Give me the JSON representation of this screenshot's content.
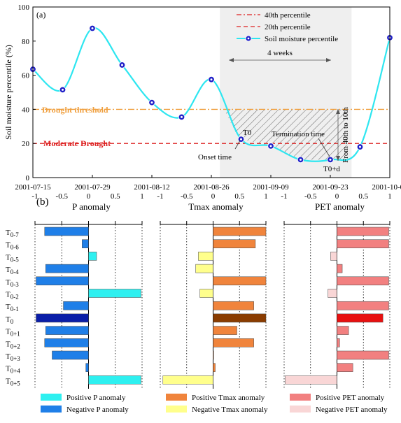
{
  "chart_data": [
    {
      "type": "line",
      "panel_label": "(a)",
      "ylabel": "Soil moisture percentile (%)",
      "ylim": [
        0,
        100
      ],
      "yticks": [
        "0",
        "20",
        "40",
        "60",
        "80",
        "100"
      ],
      "xticks": [
        "2001-07-15",
        "2001-07-29",
        "2001-08-12",
        "2001-08-26",
        "2001-09-09",
        "2001-09-23",
        "2001-10-07"
      ],
      "legend": [
        "40th percentile",
        "20th percentile",
        "Soil moisture percentile"
      ],
      "series": [
        {
          "name": "Soil moisture percentile",
          "x": [
            "2001-07-15",
            "2001-07-22",
            "2001-07-29",
            "2001-08-05",
            "2001-08-12",
            "2001-08-19",
            "2001-08-26",
            "2001-09-02",
            "2001-09-09",
            "2001-09-16",
            "2001-09-23",
            "2001-09-30",
            "2001-10-07"
          ],
          "values": [
            63.5,
            51.5,
            87.5,
            66,
            44,
            35.5,
            57.5,
            22.5,
            18.5,
            10.5,
            10.5,
            18,
            82
          ]
        }
      ],
      "thresholds": [
        {
          "label": "Drought threshold",
          "value": 40
        },
        {
          "label": "Moderate Drought",
          "value": 20
        }
      ],
      "annotations": {
        "weeks": "4 weeks",
        "onset": "Onset time",
        "termination": "Termination time",
        "t0": "T0",
        "t0d": "T0+d",
        "range": "From 40th to 10th"
      }
    },
    {
      "type": "bar",
      "panel_label": "(b)",
      "categories": [
        "T0-7",
        "T0-6",
        "T0-5",
        "T0-4",
        "T0-3",
        "T0-2",
        "T0-1",
        "T0",
        "T0+1",
        "T0+2",
        "T0+3",
        "T0+4",
        "T0+5"
      ],
      "xlim": [
        -1,
        1
      ],
      "xticks": [
        "-1",
        "-0.5",
        "0",
        "0.5",
        "1"
      ],
      "panels": [
        {
          "title": "P anomaly",
          "values": [
            -0.82,
            -0.12,
            0.15,
            -0.8,
            -0.98,
            0.98,
            -0.47,
            -0.98,
            -0.8,
            -0.82,
            -0.68,
            -0.05,
            0.98
          ],
          "pos_color": "#2ef0f0",
          "neg_color": "#1f7fe8",
          "t0_color": "#0a1ea8",
          "legend": [
            "Positive P anomaly",
            "Negative P anomaly"
          ]
        },
        {
          "title": "Tmax anomaly",
          "values": [
            1.0,
            0.8,
            -0.28,
            -0.33,
            1.0,
            -0.25,
            0.77,
            1.0,
            0.45,
            0.77,
            0.01,
            0.04,
            -0.95
          ],
          "pos_color": "#f0843c",
          "neg_color": "#ffff8c",
          "t0_color": "#8a3c00",
          "legend": [
            "Positive Tmax anomaly",
            "Negative Tmax anomaly"
          ]
        },
        {
          "title": "PET anomaly",
          "values": [
            0.98,
            0.98,
            -0.12,
            0.1,
            0.98,
            -0.17,
            0.98,
            0.87,
            0.22,
            0.05,
            0.98,
            0.3,
            -0.98
          ],
          "pos_color": "#f28080",
          "neg_color": "#f9d6d6",
          "t0_color": "#e81010",
          "legend": [
            "Positive PET anomaly",
            "Negative PET anomaly"
          ]
        }
      ]
    }
  ]
}
